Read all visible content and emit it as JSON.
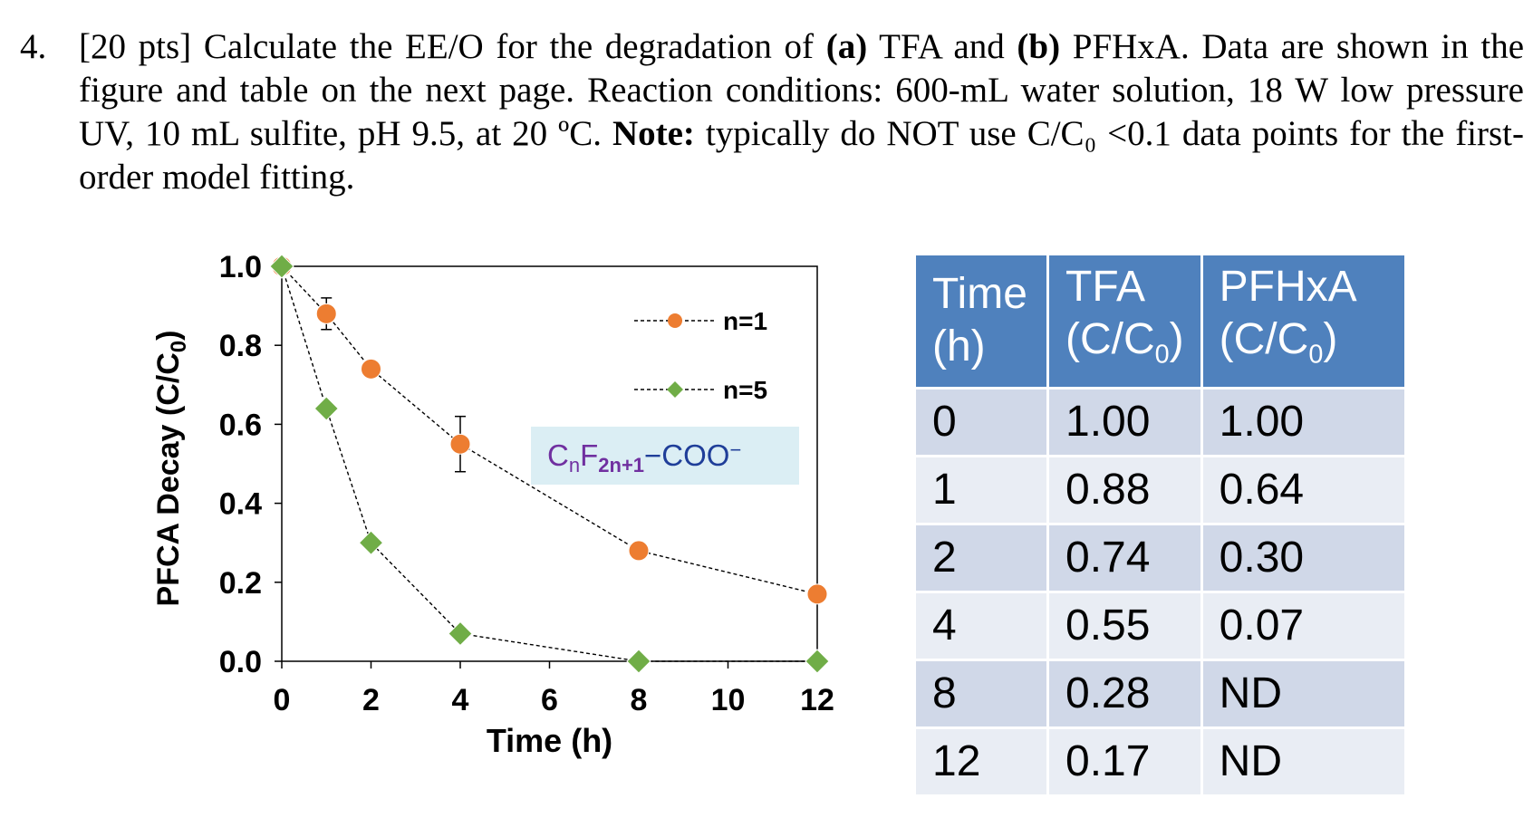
{
  "question": {
    "number": "4.",
    "points": "[20 pts]",
    "text_1": "Calculate the EE/O for the degradation of",
    "label_a": "(a)",
    "text_2": "TFA and",
    "label_b": "(b)",
    "text_3": "PFHxA. Data are shown in the figure and table on the next page. Reaction conditions: 600-mL water solution, 18 W low pressure UV, 10 mL sulfite, pH 9.5, at 20 ºC.",
    "note_label": "Note:",
    "text_4": "typically do NOT use C/C₀ <0.1 data points for the first-order model fitting."
  },
  "chart_data": {
    "type": "line",
    "xlabel": "Time (h)",
    "ylabel_main": "PFCA Decay (C/C",
    "ylabel_sub": "0",
    "ylabel_end": ")",
    "xlim": [
      0,
      12
    ],
    "ylim": [
      0,
      1
    ],
    "x_ticks": [
      "0",
      "2",
      "4",
      "6",
      "8",
      "10",
      "12"
    ],
    "y_ticks": [
      "0.0",
      "0.2",
      "0.4",
      "0.6",
      "0.8",
      "1.0"
    ],
    "grid": false,
    "legend_position": "top-right",
    "annotation": {
      "c": "C",
      "n": "n",
      "f": "F",
      "sub": "2n+1",
      "rest": "−COO",
      "sup": "−",
      "bg": "#dbeef4",
      "c_color": "#7030a0",
      "rest_color": "#1f3e99"
    },
    "series": [
      {
        "name": "n=1",
        "marker": "circle",
        "color": "#ed7d31",
        "x": [
          0,
          1,
          2,
          4,
          8,
          12
        ],
        "y": [
          1.0,
          0.88,
          0.74,
          0.55,
          0.28,
          0.17
        ],
        "error": [
          0,
          0.04,
          0,
          0.07,
          0,
          0
        ]
      },
      {
        "name": "n=5",
        "marker": "diamond",
        "color": "#70ad47",
        "x": [
          0,
          1,
          2,
          4,
          8,
          12
        ],
        "y": [
          1.0,
          0.64,
          0.3,
          0.07,
          0.0,
          0.0
        ],
        "error": [
          0,
          0,
          0,
          0,
          0,
          0
        ]
      }
    ]
  },
  "table": {
    "header_color": "#4f81bd",
    "headers": [
      {
        "line1": "Time",
        "line2": "(h)",
        "sub": "",
        "end": ""
      },
      {
        "line1": "TFA",
        "line2": "(C/C",
        "sub": "0",
        "end": ")"
      },
      {
        "line1": "PFHxA",
        "line2": "(C/C",
        "sub": "0",
        "end": ")"
      }
    ],
    "rows": [
      [
        "0",
        "1.00",
        "1.00"
      ],
      [
        "1",
        "0.88",
        "0.64"
      ],
      [
        "2",
        "0.74",
        "0.30"
      ],
      [
        "4",
        "0.55",
        "0.07"
      ],
      [
        "8",
        "0.28",
        "ND"
      ],
      [
        "12",
        "0.17",
        "ND"
      ]
    ]
  }
}
